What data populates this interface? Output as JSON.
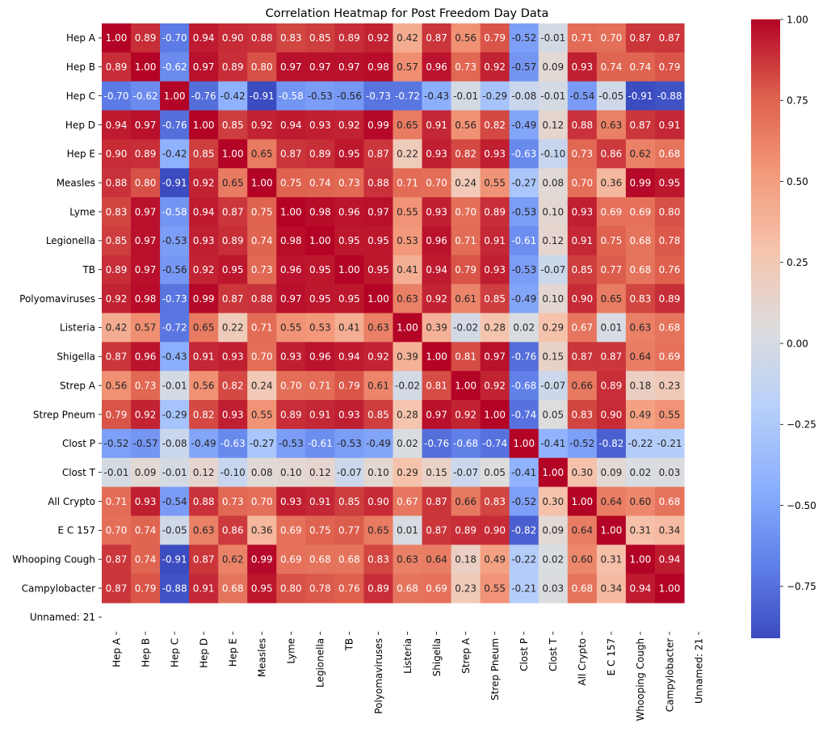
{
  "chart_data": {
    "type": "heatmap",
    "title": "Correlation Heatmap for Post Freedom Day Data",
    "labels": [
      "Hep A",
      "Hep B",
      "Hep C",
      "Hep D",
      "Hep E",
      "Measles",
      "Lyme",
      "Legionella",
      "TB",
      "Polyomaviruses",
      "Listeria",
      "Shigella",
      "Strep A",
      "Strep Pneum",
      "Clost P",
      "Clost T",
      "All Crypto",
      "E C 157",
      "Whooping Cough",
      "Campylobacter",
      "Unnamed: 21"
    ],
    "values": [
      [
        1.0,
        0.89,
        -0.7,
        0.94,
        0.9,
        0.88,
        0.83,
        0.85,
        0.89,
        0.92,
        0.42,
        0.87,
        0.56,
        0.79,
        -0.52,
        -0.01,
        0.71,
        0.7,
        0.87,
        0.87,
        null
      ],
      [
        0.89,
        1.0,
        -0.62,
        0.97,
        0.89,
        0.8,
        0.97,
        0.97,
        0.97,
        0.98,
        0.57,
        0.96,
        0.73,
        0.92,
        -0.57,
        0.09,
        0.93,
        0.74,
        0.74,
        0.79,
        null
      ],
      [
        -0.7,
        -0.62,
        1.0,
        -0.76,
        -0.42,
        -0.91,
        -0.58,
        -0.53,
        -0.56,
        -0.73,
        -0.72,
        -0.43,
        -0.01,
        -0.29,
        -0.08,
        -0.01,
        -0.54,
        -0.05,
        -0.91,
        -0.88,
        null
      ],
      [
        0.94,
        0.97,
        -0.76,
        1.0,
        0.85,
        0.92,
        0.94,
        0.93,
        0.92,
        0.99,
        0.65,
        0.91,
        0.56,
        0.82,
        -0.49,
        0.12,
        0.88,
        0.63,
        0.87,
        0.91,
        null
      ],
      [
        0.9,
        0.89,
        -0.42,
        0.85,
        1.0,
        0.65,
        0.87,
        0.89,
        0.95,
        0.87,
        0.22,
        0.93,
        0.82,
        0.93,
        -0.63,
        -0.1,
        0.73,
        0.86,
        0.62,
        0.68,
        null
      ],
      [
        0.88,
        0.8,
        -0.91,
        0.92,
        0.65,
        1.0,
        0.75,
        0.74,
        0.73,
        0.88,
        0.71,
        0.7,
        0.24,
        0.55,
        -0.27,
        0.08,
        0.7,
        0.36,
        0.99,
        0.95,
        null
      ],
      [
        0.83,
        0.97,
        -0.58,
        0.94,
        0.87,
        0.75,
        1.0,
        0.98,
        0.96,
        0.97,
        0.55,
        0.93,
        0.7,
        0.89,
        -0.53,
        0.1,
        0.93,
        0.69,
        0.69,
        0.8,
        null
      ],
      [
        0.85,
        0.97,
        -0.53,
        0.93,
        0.89,
        0.74,
        0.98,
        1.0,
        0.95,
        0.95,
        0.53,
        0.96,
        0.71,
        0.91,
        -0.61,
        0.12,
        0.91,
        0.75,
        0.68,
        0.78,
        null
      ],
      [
        0.89,
        0.97,
        -0.56,
        0.92,
        0.95,
        0.73,
        0.96,
        0.95,
        1.0,
        0.95,
        0.41,
        0.94,
        0.79,
        0.93,
        -0.53,
        -0.07,
        0.85,
        0.77,
        0.68,
        0.76,
        null
      ],
      [
        0.92,
        0.98,
        -0.73,
        0.99,
        0.87,
        0.88,
        0.97,
        0.95,
        0.95,
        1.0,
        0.63,
        0.92,
        0.61,
        0.85,
        -0.49,
        0.1,
        0.9,
        0.65,
        0.83,
        0.89,
        null
      ],
      [
        0.42,
        0.57,
        -0.72,
        0.65,
        0.22,
        0.71,
        0.55,
        0.53,
        0.41,
        0.63,
        1.0,
        0.39,
        -0.02,
        0.28,
        0.02,
        0.29,
        0.67,
        0.01,
        0.63,
        0.68,
        null
      ],
      [
        0.87,
        0.96,
        -0.43,
        0.91,
        0.93,
        0.7,
        0.93,
        0.96,
        0.94,
        0.92,
        0.39,
        1.0,
        0.81,
        0.97,
        -0.76,
        0.15,
        0.87,
        0.87,
        0.64,
        0.69,
        null
      ],
      [
        0.56,
        0.73,
        -0.01,
        0.56,
        0.82,
        0.24,
        0.7,
        0.71,
        0.79,
        0.61,
        -0.02,
        0.81,
        1.0,
        0.92,
        -0.68,
        -0.07,
        0.66,
        0.89,
        0.18,
        0.23,
        null
      ],
      [
        0.79,
        0.92,
        -0.29,
        0.82,
        0.93,
        0.55,
        0.89,
        0.91,
        0.93,
        0.85,
        0.28,
        0.97,
        0.92,
        1.0,
        -0.74,
        0.05,
        0.83,
        0.9,
        0.49,
        0.55,
        null
      ],
      [
        -0.52,
        -0.57,
        -0.08,
        -0.49,
        -0.63,
        -0.27,
        -0.53,
        -0.61,
        -0.53,
        -0.49,
        0.02,
        -0.76,
        -0.68,
        -0.74,
        1.0,
        -0.41,
        -0.52,
        -0.82,
        -0.22,
        -0.21,
        null
      ],
      [
        -0.01,
        0.09,
        -0.01,
        0.12,
        -0.1,
        0.08,
        0.1,
        0.12,
        -0.07,
        0.1,
        0.29,
        0.15,
        -0.07,
        0.05,
        -0.41,
        1.0,
        0.3,
        0.09,
        0.02,
        0.03,
        null
      ],
      [
        0.71,
        0.93,
        -0.54,
        0.88,
        0.73,
        0.7,
        0.93,
        0.91,
        0.85,
        0.9,
        0.67,
        0.87,
        0.66,
        0.83,
        -0.52,
        0.3,
        1.0,
        0.64,
        0.6,
        0.68,
        null
      ],
      [
        0.7,
        0.74,
        -0.05,
        0.63,
        0.86,
        0.36,
        0.69,
        0.75,
        0.77,
        0.65,
        0.01,
        0.87,
        0.89,
        0.9,
        -0.82,
        0.09,
        0.64,
        1.0,
        0.31,
        0.34,
        null
      ],
      [
        0.87,
        0.74,
        -0.91,
        0.87,
        0.62,
        0.99,
        0.69,
        0.68,
        0.68,
        0.83,
        0.63,
        0.64,
        0.18,
        0.49,
        -0.22,
        0.02,
        0.6,
        0.31,
        1.0,
        0.94,
        null
      ],
      [
        0.87,
        0.79,
        -0.88,
        0.91,
        0.68,
        0.95,
        0.8,
        0.78,
        0.76,
        0.89,
        0.68,
        0.69,
        0.23,
        0.55,
        -0.21,
        0.03,
        0.68,
        0.34,
        0.94,
        1.0,
        null
      ],
      [
        null,
        null,
        null,
        null,
        null,
        null,
        null,
        null,
        null,
        null,
        null,
        null,
        null,
        null,
        null,
        null,
        null,
        null,
        null,
        null,
        null
      ]
    ],
    "colormap": "coolwarm",
    "vmin": -0.91,
    "vmax": 1.0,
    "colorbar_ticks": [
      "1.00",
      "0.75",
      "0.50",
      "0.25",
      "0.00",
      "−0.25",
      "−0.50",
      "−0.75"
    ],
    "colorbar_values": [
      1.0,
      0.75,
      0.5,
      0.25,
      0.0,
      -0.25,
      -0.5,
      -0.75
    ],
    "annotations": true,
    "value_format": "2 decimals"
  }
}
